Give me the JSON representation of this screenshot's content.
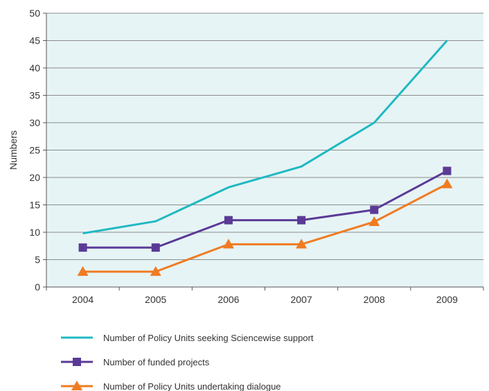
{
  "chart_data": {
    "type": "line",
    "title": "",
    "xlabel": "",
    "ylabel": "Numbers",
    "categories": [
      "2004",
      "2005",
      "2006",
      "2007",
      "2008",
      "2009"
    ],
    "ylim": [
      0,
      50
    ],
    "yticks": [
      0,
      5,
      10,
      15,
      20,
      25,
      30,
      35,
      40,
      45,
      50
    ],
    "grid": true,
    "legend_placement": "bottom",
    "plot_background": "#e6f4f5",
    "series": [
      {
        "name": "Number of Policy Units seeking Sciencewise support",
        "values": [
          9.8,
          12,
          18.2,
          22,
          30,
          45
        ],
        "color": "#1fb8c2",
        "marker": "none"
      },
      {
        "name": "Number of funded projects",
        "values": [
          7.2,
          7.2,
          12.2,
          12.2,
          14.1,
          21.2
        ],
        "color": "#5b3a96",
        "marker": "square"
      },
      {
        "name": "Number of Policy Units undertaking dialogue",
        "values": [
          2.8,
          2.8,
          7.8,
          7.8,
          11.9,
          18.8
        ],
        "color": "#f07b22",
        "marker": "triangle"
      }
    ]
  }
}
